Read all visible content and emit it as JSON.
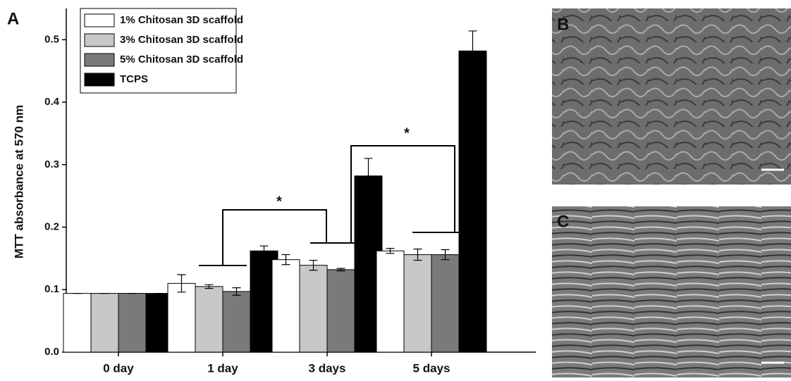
{
  "chart_data": {
    "type": "bar",
    "y_label": "MTT absorbance at 570 nm",
    "categories": [
      "0 day",
      "1 day",
      "3 days",
      "5 days"
    ],
    "series": [
      {
        "name": "1% Chitosan 3D scaffold",
        "color": "#ffffff",
        "values": [
          0.094,
          0.11,
          0.148,
          0.162
        ],
        "errors": [
          0,
          0.014,
          0.008,
          0.004
        ]
      },
      {
        "name": "3% Chitosan 3D scaffold",
        "color": "#c8c8c8",
        "values": [
          0.094,
          0.105,
          0.139,
          0.156
        ],
        "errors": [
          0,
          0.003,
          0.008,
          0.009
        ]
      },
      {
        "name": "5% Chitosan 3D scaffold",
        "color": "#7a7a7a",
        "values": [
          0.094,
          0.097,
          0.132,
          0.156
        ],
        "errors": [
          0,
          0.006,
          0.002,
          0.008
        ]
      },
      {
        "name": "TCPS",
        "color": "#000000",
        "values": [
          0.094,
          0.162,
          0.282,
          0.482
        ],
        "errors": [
          0,
          0.008,
          0.028,
          0.032
        ]
      }
    ],
    "ylim": [
      0,
      0.55
    ],
    "yticks": [
      {
        "value": 0,
        "label": "0.0"
      },
      0.1,
      0.2,
      0.3,
      0.4,
      0.5
    ],
    "annotations": [
      {
        "text": "*"
      },
      {
        "text": "*"
      }
    ],
    "legend": "upper-left"
  },
  "panel_labels": {
    "a": "A",
    "b": "B",
    "c": "C"
  }
}
